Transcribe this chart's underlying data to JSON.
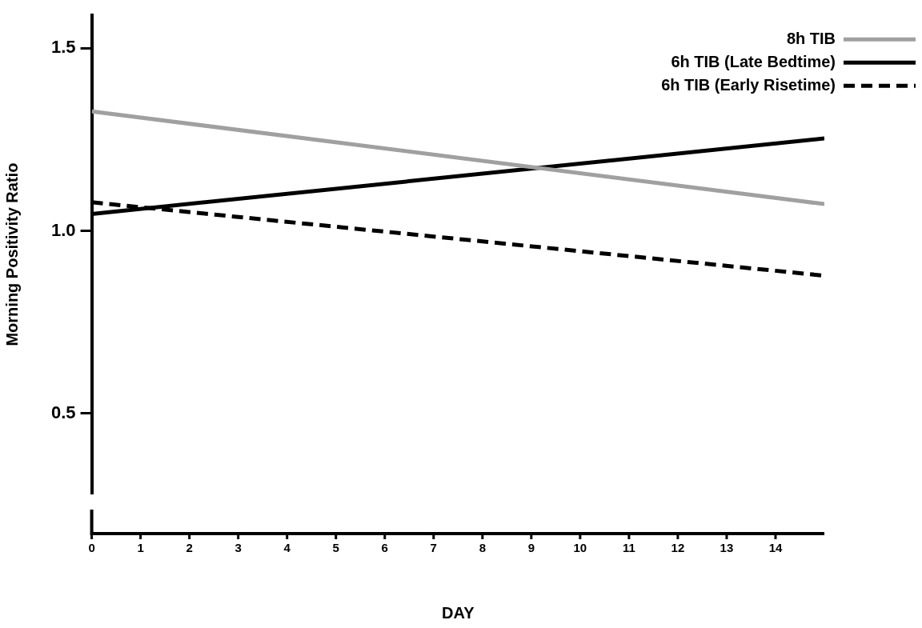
{
  "chart_data": {
    "type": "line",
    "xlabel": "DAY",
    "ylabel": "Morning Positivity Ratio",
    "xlim": [
      0,
      15
    ],
    "xticks": [
      0,
      1,
      2,
      3,
      4,
      5,
      6,
      7,
      8,
      9,
      10,
      11,
      12,
      13,
      14
    ],
    "x": [
      0,
      15
    ],
    "ylim": [
      0.28,
      1.59
    ],
    "yticks": [
      {
        "value": 0.5,
        "label": "0.5"
      },
      {
        "value": 1.0,
        "label": "1.0"
      },
      {
        "value": 1.5,
        "label": "1.5"
      }
    ],
    "grid": false,
    "legend": "top right",
    "marker": "none",
    "series": [
      {
        "name": "8h TIB",
        "color": "#a0a0a0",
        "line_style": "solid",
        "values": [
          1.327,
          1.073
        ]
      },
      {
        "name": "6h TIB (Late Bedtime)",
        "color": "#000000",
        "line_style": "solid",
        "values": [
          1.046,
          1.253
        ]
      },
      {
        "name": "6h TIB (Early Risetime)",
        "color": "#000000",
        "line_style": "dashed",
        "values": [
          1.078,
          0.877
        ]
      }
    ]
  }
}
